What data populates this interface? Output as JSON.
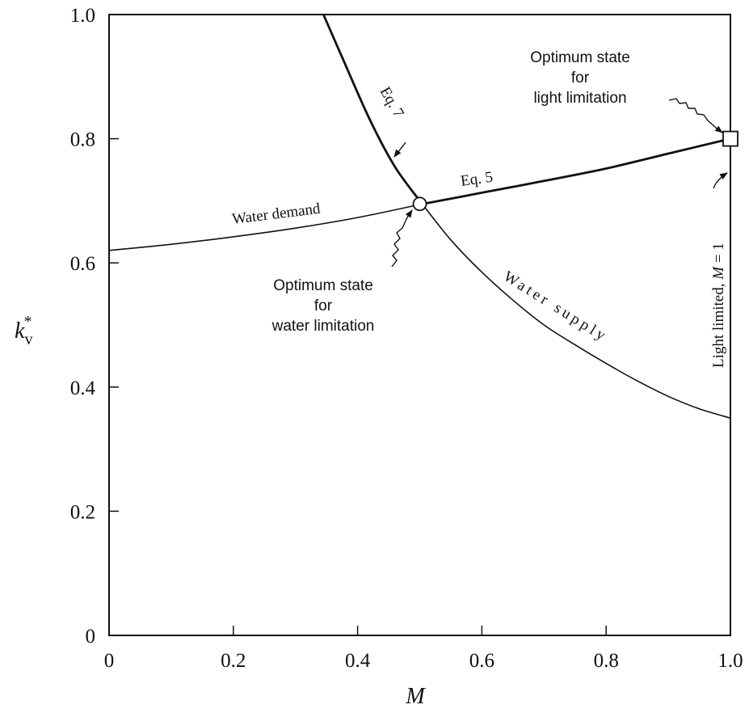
{
  "chart_data": {
    "type": "line",
    "title": "",
    "xlabel": "M",
    "ylabel": {
      "base": "k",
      "sub": "v",
      "sup": "*"
    },
    "xlim": [
      0,
      1.0
    ],
    "ylim": [
      0,
      1.0
    ],
    "x_ticks": [
      0,
      0.2,
      0.4,
      0.6,
      0.8,
      1.0
    ],
    "y_ticks": [
      0,
      0.2,
      0.4,
      0.6,
      0.8,
      1.0
    ],
    "x_tick_labels": [
      "0",
      "0.2",
      "0.4",
      "0.6",
      "0.8",
      "1.0"
    ],
    "y_tick_labels": [
      "0",
      "0.2",
      "0.4",
      "0.6",
      "0.8",
      "1.0"
    ],
    "grid": false,
    "series": [
      {
        "name": "Water demand",
        "x": [
          0,
          0.1,
          0.2,
          0.3,
          0.4,
          0.5,
          0.6,
          0.7,
          0.8,
          0.9,
          1.0
        ],
        "y": [
          0.62,
          0.63,
          0.642,
          0.656,
          0.673,
          0.694,
          0.713,
          0.732,
          0.752,
          0.776,
          0.8
        ]
      },
      {
        "name": "Water supply",
        "x": [
          0.345,
          0.38,
          0.42,
          0.46,
          0.5,
          0.55,
          0.6,
          0.65,
          0.7,
          0.75,
          0.8,
          0.85,
          0.9,
          0.95,
          1.0
        ],
        "y": [
          1.0,
          0.92,
          0.83,
          0.755,
          0.7,
          0.637,
          0.585,
          0.54,
          0.5,
          0.468,
          0.438,
          0.41,
          0.385,
          0.365,
          0.35
        ]
      }
    ],
    "points": [
      {
        "label": "Optimum state for water limitation",
        "x": 0.5,
        "y": 0.695,
        "marker": "circle"
      },
      {
        "label": "Optimum state for light limitation",
        "x": 1.0,
        "y": 0.8,
        "marker": "square"
      }
    ],
    "annotations": {
      "water_demand": "Water demand",
      "water_supply": "Water supply",
      "eq5": "Eq. 5",
      "eq7": "Eq. 7",
      "water_opt": [
        "Optimum state",
        "for",
        "water limitation"
      ],
      "light_opt": [
        "Optimum state",
        "for",
        "light limitation"
      ],
      "light_limited_prefix": "Light limited, ",
      "light_limited_var": "M",
      "light_limited_suffix": " = 1"
    }
  }
}
